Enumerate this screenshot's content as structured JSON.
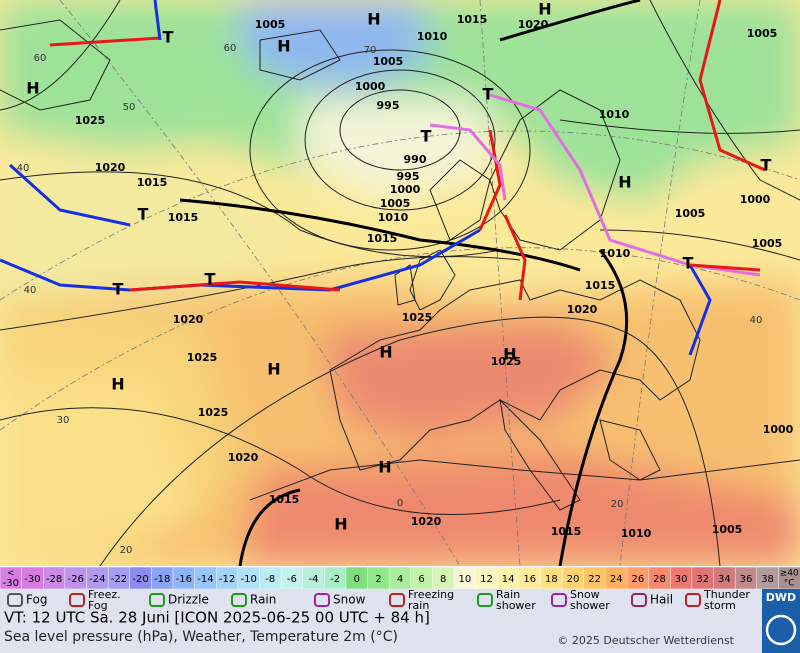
{
  "map": {
    "pressure_labels": [
      "1005",
      "1015",
      "1020",
      "1010",
      "1005",
      "1000",
      "995",
      "990",
      "995",
      "1000",
      "1005",
      "1010",
      "1015",
      "1015",
      "1015",
      "1020",
      "1025",
      "1020",
      "1025",
      "1025",
      "1020",
      "1015",
      "1020",
      "1025",
      "1025",
      "1020",
      "1015",
      "1010",
      "1005",
      "1010",
      "1005",
      "1000",
      "1005",
      "1000",
      "1015",
      "1010",
      "1005"
    ],
    "pressure_centers": [
      "H",
      "H",
      "H",
      "H",
      "H",
      "H",
      "H",
      "H",
      "H",
      "H",
      "H",
      "T",
      "T",
      "T",
      "T",
      "T",
      "T",
      "T",
      "T"
    ],
    "temperature_labels": [
      "60",
      "50",
      "40",
      "40",
      "30",
      "20",
      "60",
      "70",
      "40",
      "20",
      "0"
    ]
  },
  "colorbar": {
    "below": {
      "symbol": "<",
      "value": "-30"
    },
    "labels": [
      "-30",
      "-28",
      "-26",
      "-24",
      "-22",
      "-20",
      "-18",
      "-16",
      "-14",
      "-12",
      "-10",
      "-8",
      "-6",
      "-4",
      "-2",
      "0",
      "2",
      "4",
      "6",
      "8",
      "10",
      "12",
      "14",
      "16",
      "18",
      "20",
      "22",
      "24",
      "26",
      "28",
      "30",
      "32",
      "34",
      "36",
      "38"
    ],
    "above": {
      "symbol": "≥40",
      "unit": "°C"
    },
    "colors": [
      "#d77fe0",
      "#d67be0",
      "#c98be6",
      "#bd93ea",
      "#b29aee",
      "#a49ef0",
      "#8c8cf0",
      "#8aa4f5",
      "#8eb4f7",
      "#98c4f8",
      "#a4d2f8",
      "#b0e0f6",
      "#bcecf2",
      "#c4f2ee",
      "#b8f0dc",
      "#a8eec8",
      "#7fdf7f",
      "#92e68c",
      "#a8ee9c",
      "#c0f2a8",
      "#d8f5b8",
      "#f7f7d8",
      "#fbf7c4",
      "#fff3b0",
      "#ffeb98",
      "#ffe080",
      "#ffd470",
      "#ffc466",
      "#ffb060",
      "#ff9c68",
      "#f88870",
      "#ee7872",
      "#e07478",
      "#d07a7e",
      "#c28a8a",
      "#b39c9c",
      "#a69090"
    ]
  },
  "legend": {
    "items": [
      "Fog",
      "Freez. Fog",
      "Drizzle",
      "Rain",
      "Snow",
      "Freezing rain",
      "Rain shower",
      "Snow shower",
      "Hail",
      "Thunder storm"
    ]
  },
  "footer": {
    "valid_time": "VT: 12 UTC Sa.  28 Juni [ICON 2025-06-25  00 UTC + 84 h]",
    "description": "Sea level pressure (hPa), Weather, Temperature 2m (°C)",
    "copyright": "© 2025 Deutscher Wetterdienst",
    "logo": "DWD"
  }
}
